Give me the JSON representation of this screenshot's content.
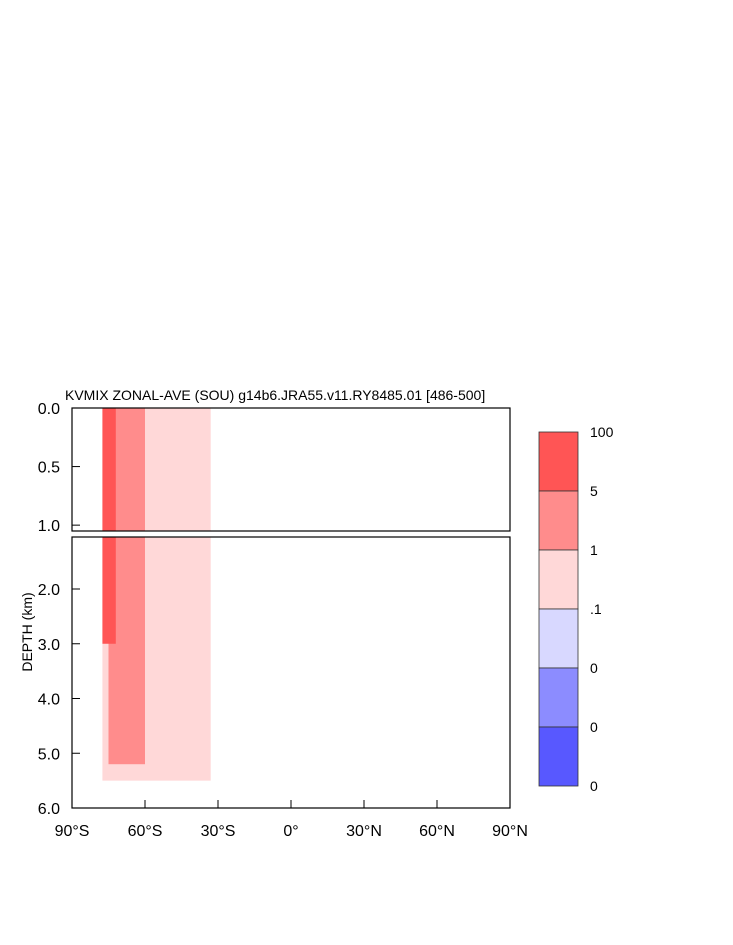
{
  "chart_data": {
    "type": "heatmap",
    "title": "KVMIX ZONAL-AVE (SOU) g14b6.JRA55.v11.RY8485.01 [486-500]",
    "ylabel": "DEPTH (km)",
    "xlabel": "",
    "x_ticks": [
      "90°S",
      "60°S",
      "30°S",
      "0°",
      "30°N",
      "60°N",
      "90°N"
    ],
    "x_range": [
      -90,
      90
    ],
    "upper_panel": {
      "ylim": [
        0,
        1.05
      ],
      "y_ticks": [
        "0.0",
        "0.5",
        "1.0"
      ]
    },
    "lower_panel": {
      "ylim": [
        1.05,
        6.0
      ],
      "y_ticks": [
        "2.0",
        "3.0",
        "4.0",
        "5.0",
        "6.0"
      ]
    },
    "colorbar": {
      "labels": [
        "100",
        "5",
        "1",
        ".1",
        "0",
        "0",
        "0"
      ],
      "colors": [
        "#ff5555",
        "#ff8c8c",
        "#ffd8d8",
        "#d8d8ff",
        "#8c8cff",
        "#5858ff"
      ]
    },
    "regions": [
      {
        "lat": [
          -77.5,
          -33
        ],
        "depth": [
          0,
          5.5
        ],
        "level": "1 to 5",
        "color": "#ffd8d8"
      },
      {
        "lat": [
          -75,
          -60
        ],
        "depth": [
          0,
          5.2
        ],
        "level": "5 to 1",
        "color": "#ff8c8c"
      },
      {
        "lat": [
          -77.5,
          -72
        ],
        "depth": [
          0,
          3.0
        ],
        "level": "100 to 5",
        "color": "#ff5555"
      }
    ]
  }
}
